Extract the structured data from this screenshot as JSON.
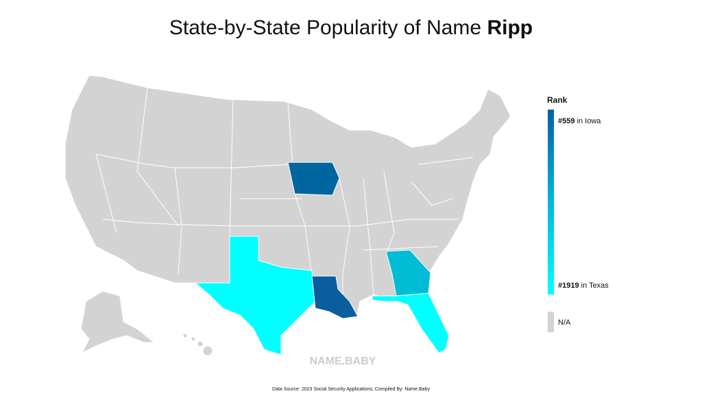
{
  "header": {
    "title": "State-by-State Popularity of Name ",
    "name": "Ripp"
  },
  "legend": {
    "title": "Rank",
    "top": {
      "rank": "#559",
      "label": " in Iowa"
    },
    "bottom": {
      "rank": "#1919",
      "label": " in Texas"
    },
    "na": "N/A"
  },
  "watermark": "NAME.BABY",
  "footer": "Data Source: 2023 Social Security Applications; Compiled By: Name.Baby"
}
